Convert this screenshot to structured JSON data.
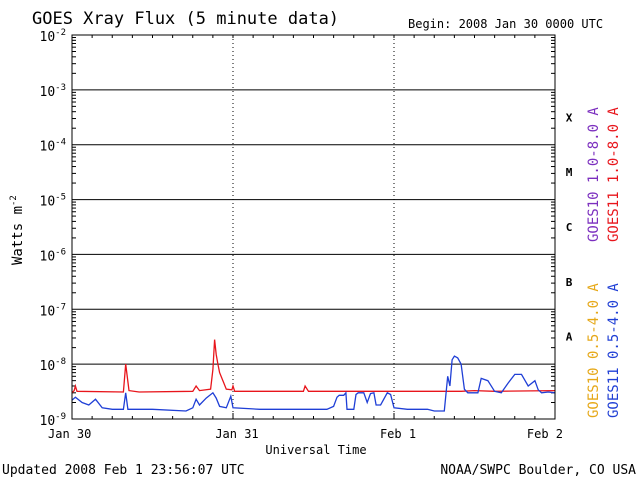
{
  "chart_data": {
    "type": "line",
    "title": "GOES Xray Flux (5 minute data)",
    "begin": "Begin:  2008 Jan 30 0000 UTC",
    "xlabel": "Universal Time",
    "ylabel": "Watts m",
    "ylabel_sup": "-2",
    "y_scale": "log",
    "ylim": [
      1e-09,
      0.01
    ],
    "y_ticks": [
      {
        "value": 0.01,
        "exp": "-2"
      },
      {
        "value": 0.001,
        "exp": "-3"
      },
      {
        "value": 0.0001,
        "exp": "-4"
      },
      {
        "value": 1e-05,
        "exp": "-5"
      },
      {
        "value": 1e-06,
        "exp": "-6"
      },
      {
        "value": 1e-07,
        "exp": "-7"
      },
      {
        "value": 1e-08,
        "exp": "-8"
      },
      {
        "value": 1e-09,
        "exp": "-9"
      }
    ],
    "y_tick_base": "10",
    "xlim": [
      "2008-01-30 00:00",
      "2008-02-02 00:00"
    ],
    "x_ticks": [
      {
        "label": "Jan 30",
        "x": "2008-01-30 00:00"
      },
      {
        "label": "Jan 31",
        "x": "2008-01-31 00:00"
      },
      {
        "label": "Feb 1",
        "x": "2008-02-01 00:00"
      },
      {
        "label": "Feb 2",
        "x": "2008-02-02 00:00"
      }
    ],
    "flare_classes": [
      {
        "label": "X",
        "lo": 0.0001,
        "hi": 0.001
      },
      {
        "label": "M",
        "lo": 1e-05,
        "hi": 0.0001
      },
      {
        "label": "C",
        "lo": 1e-06,
        "hi": 1e-05
      },
      {
        "label": "B",
        "lo": 1e-07,
        "hi": 1e-06
      },
      {
        "label": "A",
        "lo": 1e-08,
        "hi": 1e-07
      }
    ],
    "legend": [
      {
        "text": "GOES10 1.0-8.0 A",
        "color": "#7b2fbf"
      },
      {
        "text": "GOES11 1.0-8.0 A",
        "color": "#e8151b"
      },
      {
        "text": "GOES10 0.5-4.0 A",
        "color": "#e6a817"
      },
      {
        "text": "GOES11 0.5-4.0 A",
        "color": "#1f3fd6"
      }
    ],
    "series": [
      {
        "name": "GOES11 1.0-8.0 A",
        "color": "#e8151b",
        "points": [
          [
            "2008-01-30 00:00",
            3e-09
          ],
          [
            "2008-01-30 00:20",
            3.3e-09
          ],
          [
            "2008-01-30 00:30",
            4e-09
          ],
          [
            "2008-01-30 00:45",
            3.2e-09
          ],
          [
            "2008-01-30 07:40",
            3.1e-09
          ],
          [
            "2008-01-30 08:00",
            1e-08
          ],
          [
            "2008-01-30 08:30",
            3.3e-09
          ],
          [
            "2008-01-30 10:00",
            3.1e-09
          ],
          [
            "2008-01-30 18:00",
            3.2e-09
          ],
          [
            "2008-01-30 18:30",
            4e-09
          ],
          [
            "2008-01-30 19:00",
            3.3e-09
          ],
          [
            "2008-01-30 20:40",
            3.5e-09
          ],
          [
            "2008-01-30 21:00",
            8e-09
          ],
          [
            "2008-01-30 21:15",
            2.8e-08
          ],
          [
            "2008-01-30 21:30",
            1.5e-08
          ],
          [
            "2008-01-30 21:45",
            1e-08
          ],
          [
            "2008-01-30 22:00",
            7e-09
          ],
          [
            "2008-01-30 22:30",
            5e-09
          ],
          [
            "2008-01-30 23:00",
            3.5e-09
          ],
          [
            "2008-01-30 23:50",
            3.4e-09
          ],
          [
            "2008-01-31 00:00",
            4e-09
          ],
          [
            "2008-01-31 00:15",
            3.2e-09
          ],
          [
            "2008-01-31 10:30",
            3.2e-09
          ],
          [
            "2008-01-31 10:45",
            4e-09
          ],
          [
            "2008-01-31 11:15",
            3.2e-09
          ],
          [
            "2008-02-01 10:00",
            3.2e-09
          ],
          [
            "2008-02-01 12:00",
            3.3e-09
          ],
          [
            "2008-02-01 15:00",
            3.2e-09
          ],
          [
            "2008-02-02 00:00",
            3.3e-09
          ]
        ]
      },
      {
        "name": "GOES11 0.5-4.0 A",
        "color": "#1f3fd6",
        "points": [
          [
            "2008-01-30 00:00",
            2.2e-09
          ],
          [
            "2008-01-30 00:30",
            2.5e-09
          ],
          [
            "2008-01-30 01:30",
            2e-09
          ],
          [
            "2008-01-30 02:30",
            1.8e-09
          ],
          [
            "2008-01-30 03:30",
            2.3e-09
          ],
          [
            "2008-01-30 04:30",
            1.6e-09
          ],
          [
            "2008-01-30 06:00",
            1.5e-09
          ],
          [
            "2008-01-30 07:40",
            1.5e-09
          ],
          [
            "2008-01-30 08:00",
            3e-09
          ],
          [
            "2008-01-30 08:20",
            1.5e-09
          ],
          [
            "2008-01-30 12:00",
            1.5e-09
          ],
          [
            "2008-01-30 17:00",
            1.4e-09
          ],
          [
            "2008-01-30 18:00",
            1.6e-09
          ],
          [
            "2008-01-30 18:30",
            2.3e-09
          ],
          [
            "2008-01-30 19:00",
            1.8e-09
          ],
          [
            "2008-01-30 20:00",
            2.4e-09
          ],
          [
            "2008-01-30 21:00",
            3e-09
          ],
          [
            "2008-01-30 21:30",
            2.4e-09
          ],
          [
            "2008-01-30 22:00",
            1.7e-09
          ],
          [
            "2008-01-30 23:00",
            1.6e-09
          ],
          [
            "2008-01-30 23:40",
            2.6e-09
          ],
          [
            "2008-01-31 00:00",
            1.6e-09
          ],
          [
            "2008-01-31 04:00",
            1.5e-09
          ],
          [
            "2008-01-31 10:00",
            1.5e-09
          ],
          [
            "2008-01-31 14:00",
            1.5e-09
          ],
          [
            "2008-01-31 15:00",
            1.7e-09
          ],
          [
            "2008-01-31 15:30",
            2.5e-09
          ],
          [
            "2008-01-31 15:50",
            2.7e-09
          ],
          [
            "2008-01-31 16:30",
            2.7e-09
          ],
          [
            "2008-01-31 16:50",
            3e-09
          ],
          [
            "2008-01-31 17:00",
            1.5e-09
          ],
          [
            "2008-01-31 18:00",
            1.5e-09
          ],
          [
            "2008-01-31 18:20",
            2.8e-09
          ],
          [
            "2008-01-31 18:40",
            3e-09
          ],
          [
            "2008-01-31 19:30",
            3e-09
          ],
          [
            "2008-01-31 20:00",
            2e-09
          ],
          [
            "2008-01-31 20:30",
            2.9e-09
          ],
          [
            "2008-01-31 21:00",
            3e-09
          ],
          [
            "2008-01-31 21:20",
            1.8e-09
          ],
          [
            "2008-01-31 22:00",
            1.8e-09
          ],
          [
            "2008-01-31 23:00",
            3e-09
          ],
          [
            "2008-01-31 23:30",
            2.8e-09
          ],
          [
            "2008-02-01 00:00",
            1.6e-09
          ],
          [
            "2008-02-01 02:00",
            1.5e-09
          ],
          [
            "2008-02-01 05:00",
            1.5e-09
          ],
          [
            "2008-02-01 06:00",
            1.4e-09
          ],
          [
            "2008-02-01 07:30",
            1.4e-09
          ],
          [
            "2008-02-01 08:00",
            6e-09
          ],
          [
            "2008-02-01 08:20",
            4e-09
          ],
          [
            "2008-02-01 08:40",
            1.2e-08
          ],
          [
            "2008-02-01 09:00",
            1.4e-08
          ],
          [
            "2008-02-01 09:30",
            1.3e-08
          ],
          [
            "2008-02-01 10:00",
            1e-08
          ],
          [
            "2008-02-01 10:30",
            3.5e-09
          ],
          [
            "2008-02-01 11:00",
            3e-09
          ],
          [
            "2008-02-01 12:30",
            3e-09
          ],
          [
            "2008-02-01 13:00",
            5.5e-09
          ],
          [
            "2008-02-01 14:00",
            5e-09
          ],
          [
            "2008-02-01 15:00",
            3.2e-09
          ],
          [
            "2008-02-01 16:00",
            3e-09
          ],
          [
            "2008-02-01 17:00",
            4.5e-09
          ],
          [
            "2008-02-01 18:00",
            6.5e-09
          ],
          [
            "2008-02-01 19:00",
            6.5e-09
          ],
          [
            "2008-02-01 20:00",
            4e-09
          ],
          [
            "2008-02-01 21:00",
            5e-09
          ],
          [
            "2008-02-01 21:30",
            3.4e-09
          ],
          [
            "2008-02-01 22:00",
            3e-09
          ],
          [
            "2008-02-01 23:00",
            3.1e-09
          ],
          [
            "2008-02-02 00:00",
            3e-09
          ]
        ]
      }
    ]
  },
  "footer": {
    "updated": "Updated 2008 Feb  1 23:56:07 UTC",
    "credit": "NOAA/SWPC Boulder, CO USA"
  }
}
